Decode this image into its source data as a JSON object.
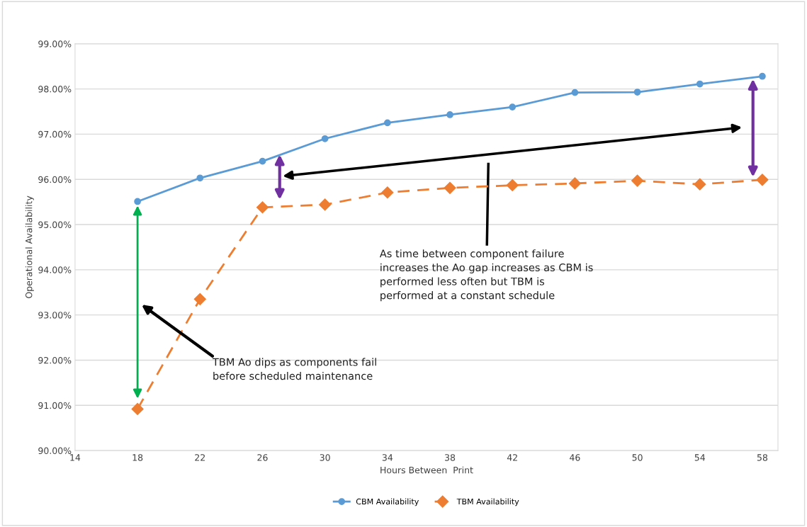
{
  "chart_data": {
    "type": "line",
    "xlabel": "Hours Between  Print",
    "ylabel": "Operational Availability",
    "x": [
      18,
      22,
      26,
      30,
      34,
      38,
      42,
      46,
      50,
      54,
      58
    ],
    "series": [
      {
        "name": "CBM Availability",
        "color": "#5b9bd5",
        "marker": "circle",
        "line_style": "solid",
        "values": [
          95.51,
          96.03,
          96.4,
          96.9,
          97.25,
          97.43,
          97.6,
          97.92,
          97.93,
          98.11,
          98.28
        ]
      },
      {
        "name": "TBM Availability",
        "color": "#ed7d31",
        "marker": "diamond",
        "line_style": "dashed",
        "values": [
          90.92,
          93.35,
          95.38,
          95.44,
          95.71,
          95.81,
          95.87,
          95.91,
          95.97,
          95.89,
          95.99
        ]
      }
    ],
    "xlim": [
      14,
      59
    ],
    "xticks": [
      14,
      18,
      22,
      26,
      30,
      34,
      38,
      42,
      46,
      50,
      54,
      58
    ],
    "ylim": [
      90,
      99
    ],
    "yticks": [
      {
        "value": 90,
        "label": "90.00%"
      },
      {
        "value": 91,
        "label": "91.00%"
      },
      {
        "value": 92,
        "label": "92.00%"
      },
      {
        "value": 93,
        "label": "93.00%"
      },
      {
        "value": 94,
        "label": "94.00%"
      },
      {
        "value": 95,
        "label": "95.00%"
      },
      {
        "value": 96,
        "label": "96.00%"
      },
      {
        "value": 97,
        "label": "97.00%"
      },
      {
        "value": 98,
        "label": "98.00%"
      },
      {
        "value": 99,
        "label": "99.00%"
      }
    ],
    "grid": "y",
    "legend": "bottom",
    "annotations": [
      "As time between component failure\nincreases the Ao gap increases as CBM is\nperformed less often but TBM is\nperformed at a constant schedule",
      "TBM Ao dips as components fail\nbefore scheduled maintenance"
    ]
  }
}
